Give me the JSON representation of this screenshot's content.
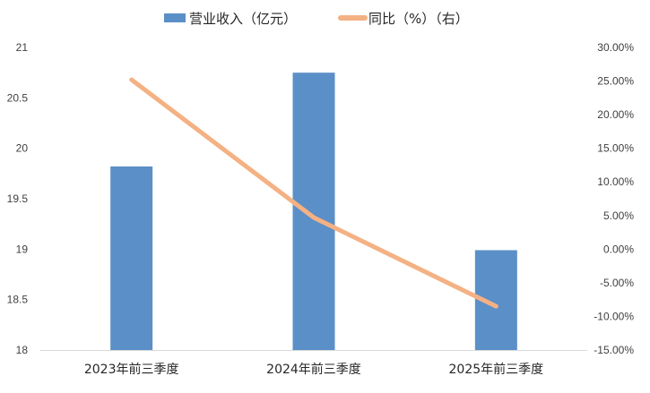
{
  "chart_data": {
    "type": "bar+line",
    "categories": [
      "2023年前三季度",
      "2024年前三季度",
      "2025年前三季度"
    ],
    "series": [
      {
        "name": "营业收入（亿元）",
        "type": "bar",
        "axis": "left",
        "color": "#5B8FC7",
        "values": [
          19.82,
          20.75,
          18.99
        ]
      },
      {
        "name": "同比（%）（右）",
        "type": "line",
        "axis": "right",
        "color": "#F4B183",
        "values": [
          25.2,
          4.7,
          -8.5
        ]
      }
    ],
    "y_left": {
      "range": [
        18,
        21
      ],
      "ticks": [
        "18",
        "18.5",
        "19",
        "19.5",
        "20",
        "20.5",
        "21"
      ]
    },
    "y_right": {
      "range": [
        -15,
        30
      ],
      "ticks": [
        "-15.00%",
        "-10.00%",
        "-5.00%",
        "0.00%",
        "5.00%",
        "10.00%",
        "15.00%",
        "20.00%",
        "25.00%",
        "30.00%"
      ]
    },
    "grid": false,
    "legend_position": "top"
  }
}
